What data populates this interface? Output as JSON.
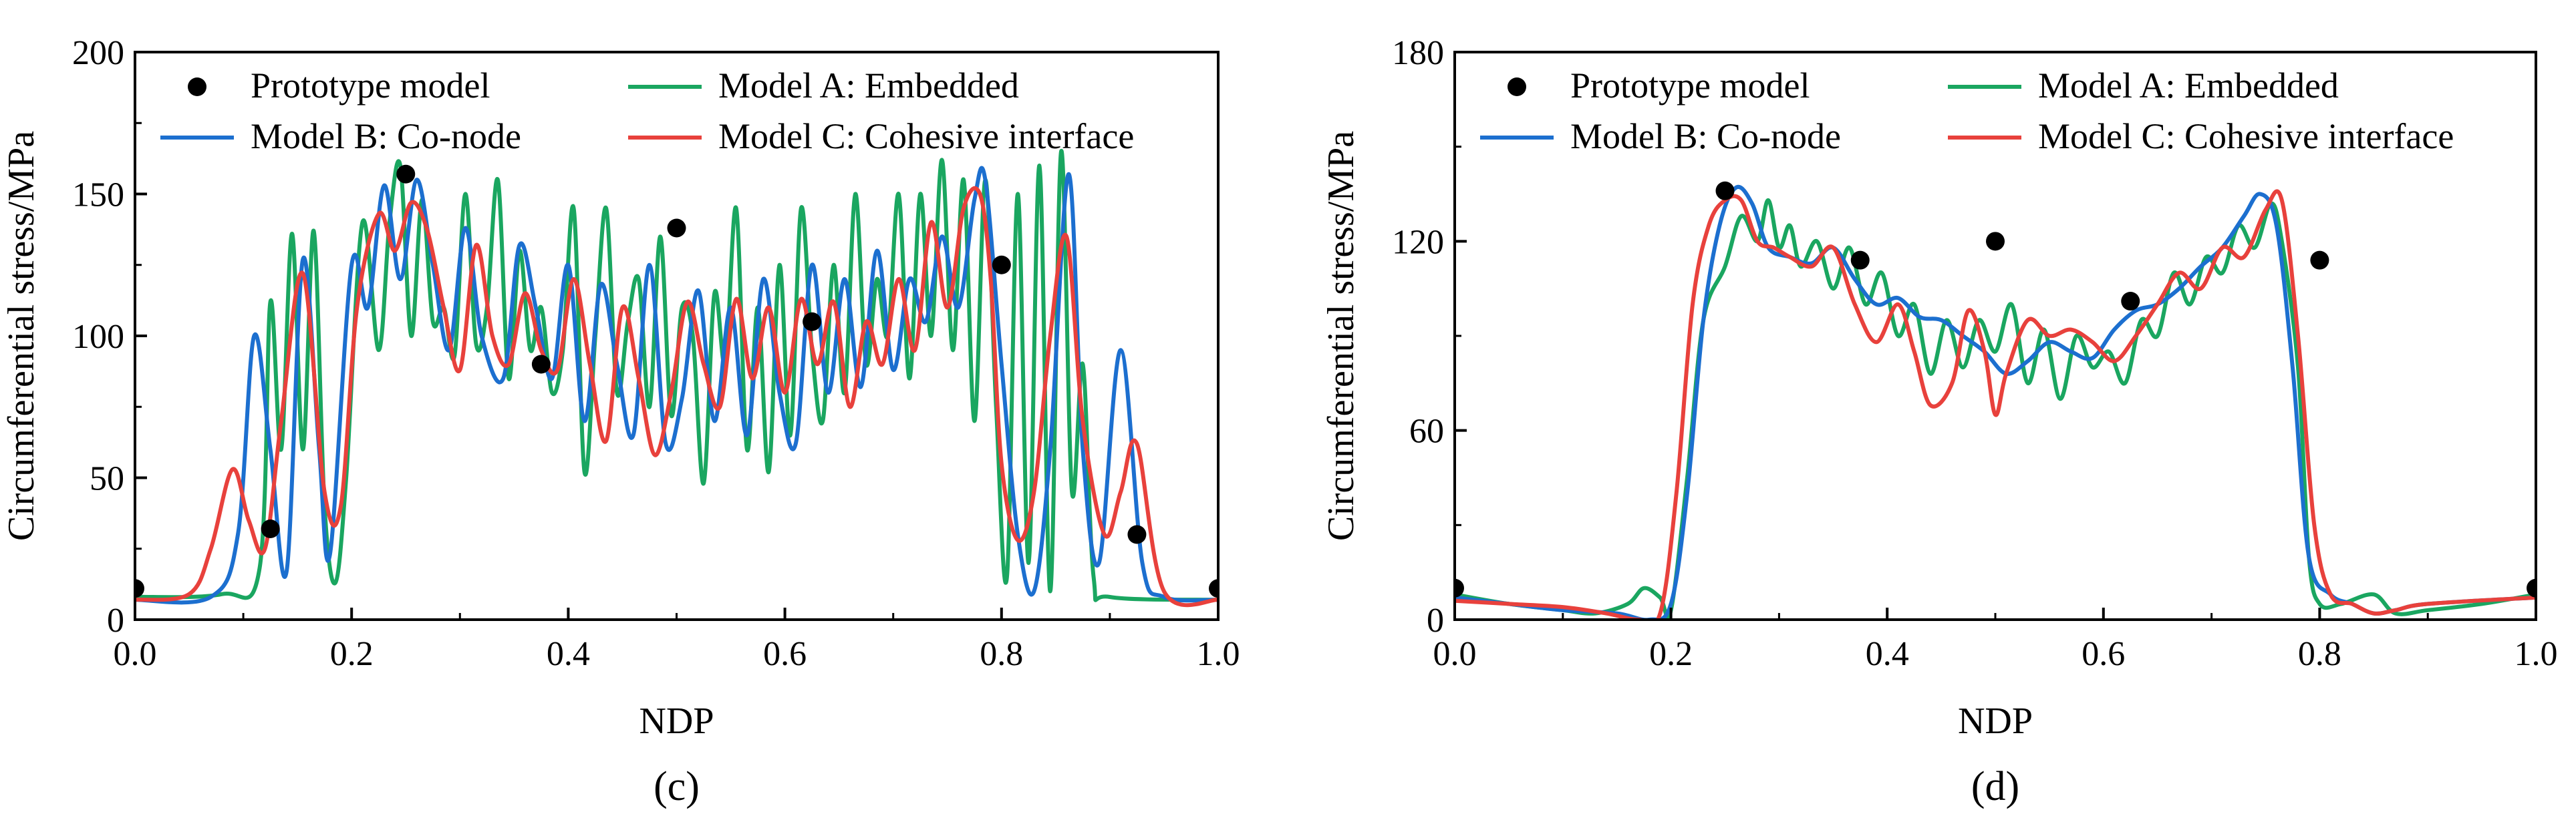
{
  "chart_data": [
    {
      "type": "line",
      "panel_label": "(c)",
      "xlabel": "NDP",
      "ylabel": "Circumferential stress/MPa",
      "xlim": [
        0.0,
        1.0
      ],
      "ylim": [
        0,
        200
      ],
      "xticks": [
        "0.0",
        "0.2",
        "0.4",
        "0.6",
        "0.8",
        "1.0"
      ],
      "yticks": [
        "0",
        "50",
        "100",
        "150",
        "200"
      ],
      "legend": [
        "Prototype model",
        "Model A: Embedded",
        "Model B: Co-node",
        "Model C: Cohesive interface"
      ],
      "series": [
        {
          "name": "Prototype model",
          "kind": "scatter",
          "color": "#000000",
          "x": [
            0.0,
            0.125,
            0.25,
            0.375,
            0.5,
            0.625,
            0.8,
            0.925,
            1.0
          ],
          "y": [
            11,
            32,
            157,
            90,
            138,
            105,
            125,
            30,
            11
          ]
        },
        {
          "name": "Model A: Embedded",
          "color": "#1aa660",
          "x": [
            0.0,
            0.08,
            0.115,
            0.125,
            0.135,
            0.145,
            0.155,
            0.165,
            0.175,
            0.185,
            0.195,
            0.21,
            0.225,
            0.235,
            0.245,
            0.255,
            0.265,
            0.275,
            0.285,
            0.295,
            0.305,
            0.315,
            0.325,
            0.335,
            0.345,
            0.355,
            0.365,
            0.375,
            0.385,
            0.395,
            0.405,
            0.415,
            0.425,
            0.435,
            0.445,
            0.455,
            0.465,
            0.475,
            0.485,
            0.495,
            0.505,
            0.515,
            0.525,
            0.535,
            0.545,
            0.555,
            0.565,
            0.575,
            0.585,
            0.595,
            0.605,
            0.615,
            0.625,
            0.635,
            0.645,
            0.655,
            0.665,
            0.675,
            0.685,
            0.695,
            0.705,
            0.715,
            0.725,
            0.735,
            0.745,
            0.755,
            0.765,
            0.775,
            0.785,
            0.795,
            0.805,
            0.815,
            0.825,
            0.835,
            0.845,
            0.855,
            0.865,
            0.875,
            0.885,
            0.9,
            1.0
          ],
          "y": [
            8,
            9,
            18,
            112,
            60,
            136,
            60,
            137,
            40,
            13,
            50,
            140,
            95,
            140,
            160,
            100,
            148,
            105,
            110,
            93,
            150,
            97,
            110,
            155,
            85,
            130,
            95,
            110,
            80,
            95,
            145,
            52,
            100,
            145,
            80,
            105,
            120,
            75,
            135,
            72,
            110,
            100,
            48,
            115,
            90,
            145,
            60,
            110,
            52,
            125,
            65,
            145,
            95,
            70,
            125,
            80,
            150,
            90,
            120,
            100,
            150,
            85,
            150,
            100,
            162,
            95,
            155,
            70,
            155,
            75,
            15,
            150,
            20,
            160,
            10,
            165,
            45,
            90,
            15,
            8,
            7
          ]
        },
        {
          "name": "Model B: Co-node",
          "color": "#1c6fcf",
          "x": [
            0.0,
            0.07,
            0.095,
            0.11,
            0.125,
            0.14,
            0.155,
            0.17,
            0.18,
            0.2,
            0.215,
            0.23,
            0.245,
            0.26,
            0.275,
            0.29,
            0.305,
            0.32,
            0.34,
            0.355,
            0.37,
            0.385,
            0.4,
            0.415,
            0.43,
            0.445,
            0.46,
            0.475,
            0.49,
            0.505,
            0.52,
            0.535,
            0.55,
            0.565,
            0.58,
            0.595,
            0.61,
            0.625,
            0.64,
            0.655,
            0.67,
            0.685,
            0.7,
            0.715,
            0.73,
            0.745,
            0.76,
            0.775,
            0.785,
            0.8,
            0.815,
            0.83,
            0.845,
            0.862,
            0.875,
            0.89,
            0.91,
            0.93,
            0.95,
            1.0
          ],
          "y": [
            7,
            8,
            30,
            100,
            60,
            17,
            127,
            60,
            23,
            125,
            110,
            153,
            120,
            155,
            125,
            95,
            138,
            100,
            85,
            132,
            110,
            85,
            125,
            70,
            118,
            90,
            65,
            125,
            62,
            78,
            116,
            70,
            110,
            65,
            120,
            80,
            62,
            125,
            80,
            120,
            82,
            130,
            88,
            120,
            105,
            135,
            110,
            148,
            155,
            90,
            30,
            10,
            60,
            157,
            60,
            20,
            95,
            20,
            8,
            7
          ]
        },
        {
          "name": "Model C: Cohesive interface",
          "color": "#e8413c",
          "x": [
            0.0,
            0.05,
            0.07,
            0.09,
            0.105,
            0.12,
            0.135,
            0.155,
            0.175,
            0.19,
            0.205,
            0.225,
            0.24,
            0.255,
            0.27,
            0.285,
            0.3,
            0.315,
            0.33,
            0.345,
            0.36,
            0.375,
            0.39,
            0.405,
            0.42,
            0.435,
            0.45,
            0.465,
            0.48,
            0.495,
            0.51,
            0.525,
            0.54,
            0.555,
            0.57,
            0.585,
            0.6,
            0.615,
            0.63,
            0.645,
            0.66,
            0.675,
            0.69,
            0.705,
            0.72,
            0.735,
            0.75,
            0.765,
            0.78,
            0.79,
            0.8,
            0.815,
            0.83,
            0.845,
            0.86,
            0.875,
            0.895,
            0.91,
            0.925,
            0.95,
            1.0
          ],
          "y": [
            7,
            9,
            25,
            53,
            35,
            25,
            70,
            122,
            45,
            40,
            110,
            143,
            130,
            147,
            137,
            110,
            88,
            132,
            100,
            90,
            115,
            95,
            88,
            120,
            90,
            63,
            110,
            85,
            58,
            80,
            112,
            90,
            75,
            113,
            85,
            110,
            80,
            113,
            90,
            112,
            75,
            105,
            90,
            120,
            95,
            140,
            110,
            145,
            150,
            120,
            55,
            28,
            45,
            100,
            135,
            70,
            30,
            45,
            62,
            10,
            7
          ]
        }
      ]
    },
    {
      "type": "line",
      "panel_label": "(d)",
      "xlabel": "NDP",
      "ylabel": "Circumferential stress/MPa",
      "xlim": [
        0.0,
        1.0
      ],
      "ylim": [
        0,
        180
      ],
      "xticks": [
        "0.0",
        "0.2",
        "0.4",
        "0.6",
        "0.8",
        "1.0"
      ],
      "yticks": [
        "0",
        "60",
        "120",
        "180"
      ],
      "legend": [
        "Prototype model",
        "Model A: Embedded",
        "Model B: Co-node",
        "Model C: Cohesive interface"
      ],
      "series": [
        {
          "name": "Prototype model",
          "kind": "scatter",
          "color": "#000000",
          "x": [
            0.0,
            0.25,
            0.375,
            0.5,
            0.625,
            0.8,
            1.0
          ],
          "y": [
            10,
            136,
            114,
            120,
            101,
            114,
            10
          ]
        },
        {
          "name": "Model A: Embedded",
          "color": "#1aa660",
          "x": [
            0.0,
            0.05,
            0.1,
            0.13,
            0.16,
            0.175,
            0.19,
            0.2,
            0.215,
            0.23,
            0.25,
            0.265,
            0.28,
            0.29,
            0.3,
            0.31,
            0.32,
            0.335,
            0.35,
            0.365,
            0.38,
            0.395,
            0.41,
            0.425,
            0.44,
            0.455,
            0.47,
            0.485,
            0.5,
            0.515,
            0.53,
            0.545,
            0.56,
            0.575,
            0.59,
            0.605,
            0.62,
            0.635,
            0.65,
            0.665,
            0.68,
            0.695,
            0.71,
            0.725,
            0.74,
            0.755,
            0.765,
            0.78,
            0.79,
            0.8,
            0.82,
            0.85,
            0.87,
            0.9,
            0.95,
            1.0
          ],
          "y": [
            8,
            5,
            3,
            2,
            5,
            10,
            7,
            3,
            45,
            95,
            112,
            128,
            120,
            133,
            118,
            125,
            112,
            120,
            105,
            118,
            100,
            110,
            90,
            100,
            78,
            95,
            80,
            95,
            85,
            100,
            75,
            92,
            70,
            90,
            80,
            85,
            75,
            95,
            90,
            110,
            100,
            115,
            110,
            125,
            118,
            132,
            120,
            80,
            20,
            5,
            5,
            8,
            2,
            3,
            5,
            8
          ]
        },
        {
          "name": "Model B: Co-node",
          "color": "#1c6fcf",
          "x": [
            0.0,
            0.05,
            0.1,
            0.15,
            0.18,
            0.2,
            0.215,
            0.23,
            0.245,
            0.26,
            0.275,
            0.29,
            0.31,
            0.33,
            0.35,
            0.37,
            0.39,
            0.41,
            0.43,
            0.45,
            0.47,
            0.49,
            0.51,
            0.53,
            0.55,
            0.57,
            0.59,
            0.61,
            0.63,
            0.65,
            0.67,
            0.69,
            0.71,
            0.73,
            0.745,
            0.76,
            0.775,
            0.79,
            0.81,
            0.83,
            0.85,
            0.87,
            0.9,
            1.0
          ],
          "y": [
            7,
            5,
            3,
            2,
            0,
            5,
            40,
            95,
            125,
            137,
            132,
            118,
            115,
            113,
            118,
            108,
            100,
            102,
            96,
            95,
            90,
            85,
            78,
            82,
            88,
            85,
            83,
            92,
            98,
            100,
            105,
            112,
            118,
            128,
            135,
            125,
            80,
            20,
            8,
            5,
            2,
            3,
            5,
            7
          ]
        },
        {
          "name": "Model C: Cohesive interface",
          "color": "#e8413c",
          "x": [
            0.0,
            0.05,
            0.1,
            0.14,
            0.17,
            0.19,
            0.205,
            0.22,
            0.235,
            0.25,
            0.265,
            0.28,
            0.295,
            0.31,
            0.33,
            0.35,
            0.37,
            0.39,
            0.41,
            0.425,
            0.44,
            0.46,
            0.475,
            0.49,
            0.5,
            0.51,
            0.53,
            0.55,
            0.57,
            0.59,
            0.61,
            0.63,
            0.65,
            0.67,
            0.69,
            0.71,
            0.73,
            0.75,
            0.765,
            0.78,
            0.795,
            0.81,
            0.83,
            0.85,
            0.87,
            0.9,
            1.0
          ],
          "y": [
            6,
            5,
            4,
            2,
            0,
            2,
            40,
            100,
            125,
            133,
            133,
            120,
            118,
            115,
            112,
            118,
            100,
            88,
            100,
            85,
            68,
            75,
            98,
            85,
            65,
            78,
            95,
            90,
            92,
            88,
            82,
            90,
            100,
            110,
            105,
            118,
            115,
            130,
            133,
            90,
            30,
            8,
            5,
            2,
            3,
            5,
            7
          ]
        }
      ]
    }
  ]
}
